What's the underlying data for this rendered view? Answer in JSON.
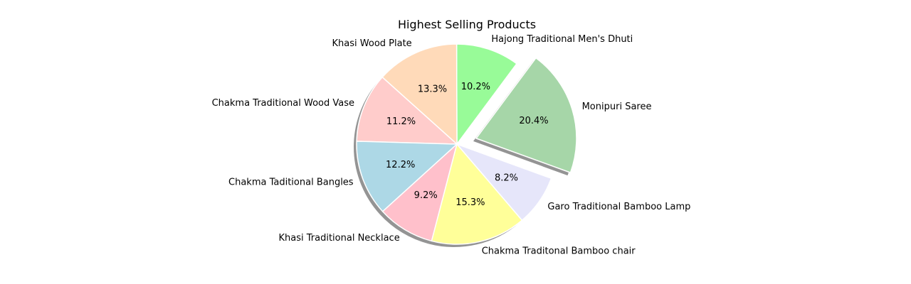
{
  "chart_data": {
    "type": "pie",
    "title": "Highest Selling Products",
    "labels": [
      "Monipuri Saree",
      "Hajong Traditional Men's Dhuti",
      "Khasi Wood Plate",
      "Chakma Traditional Wood Vase",
      "Chakma Taditional Bangles",
      "Khasi Traditional Necklace",
      "Chakma Traditonal Bamboo chair",
      "Garo Traditional Bamboo Lamp"
    ],
    "percent_labels": [
      "20.4%",
      "10.2%",
      "13.3%",
      "11.2%",
      "12.2%",
      "9.2%",
      "15.3%",
      "8.2%"
    ],
    "values": [
      20.4,
      10.2,
      13.3,
      11.2,
      12.2,
      9.2,
      15.3,
      8.2
    ],
    "colors": [
      "#a6d6a8",
      "#98fb98",
      "#ffdab9",
      "#ffcccb",
      "#add8e6",
      "#ffc0cb",
      "#ffff99",
      "#e6e6fa"
    ],
    "exploded_slice": "Monipuri Saree",
    "shadow": true
  }
}
